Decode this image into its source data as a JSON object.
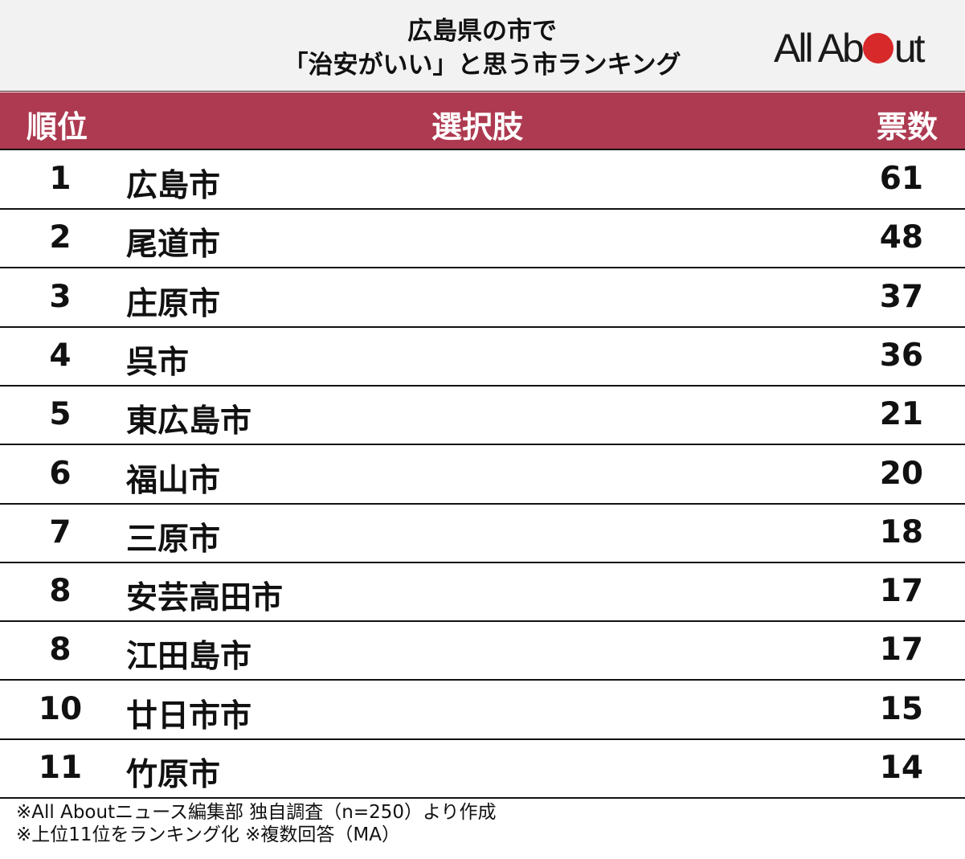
{
  "header": {
    "title_line1": "広島県の市で",
    "title_line2": "「治安がいい」と思う市ランキング",
    "logo": {
      "pre": "All Ab",
      "post": "ut",
      "dot_color": "#d7282a"
    }
  },
  "table": {
    "header_color": "#ad3a50",
    "columns": [
      "順位",
      "選択肢",
      "票数"
    ],
    "rows": [
      {
        "rank": "1",
        "name": "広島市",
        "votes": "61"
      },
      {
        "rank": "2",
        "name": "尾道市",
        "votes": "48"
      },
      {
        "rank": "3",
        "name": "庄原市",
        "votes": "37"
      },
      {
        "rank": "4",
        "name": "呉市",
        "votes": "36"
      },
      {
        "rank": "5",
        "name": "東広島市",
        "votes": "21"
      },
      {
        "rank": "6",
        "name": "福山市",
        "votes": "20"
      },
      {
        "rank": "7",
        "name": "三原市",
        "votes": "18"
      },
      {
        "rank": "8",
        "name": "安芸高田市",
        "votes": "17"
      },
      {
        "rank": "8",
        "name": "江田島市",
        "votes": "17"
      },
      {
        "rank": "10",
        "name": "廿日市市",
        "votes": "15"
      },
      {
        "rank": "11",
        "name": "竹原市",
        "votes": "14"
      }
    ]
  },
  "notes": [
    "※All Aboutニュース編集部 独自調査（n=250）より作成",
    "※上位11位をランキング化 ※複数回答（MA）"
  ],
  "chart_data": {
    "type": "table",
    "title": "広島県の市で「治安がいい」と思う市ランキング",
    "columns": [
      "順位",
      "選択肢",
      "票数"
    ],
    "categories": [
      "広島市",
      "尾道市",
      "庄原市",
      "呉市",
      "東広島市",
      "福山市",
      "三原市",
      "安芸高田市",
      "江田島市",
      "廿日市市",
      "竹原市"
    ],
    "ranks": [
      1,
      2,
      3,
      4,
      5,
      6,
      7,
      8,
      8,
      10,
      11
    ],
    "values": [
      61,
      48,
      37,
      36,
      21,
      20,
      18,
      17,
      17,
      15,
      14
    ],
    "n": 250
  }
}
